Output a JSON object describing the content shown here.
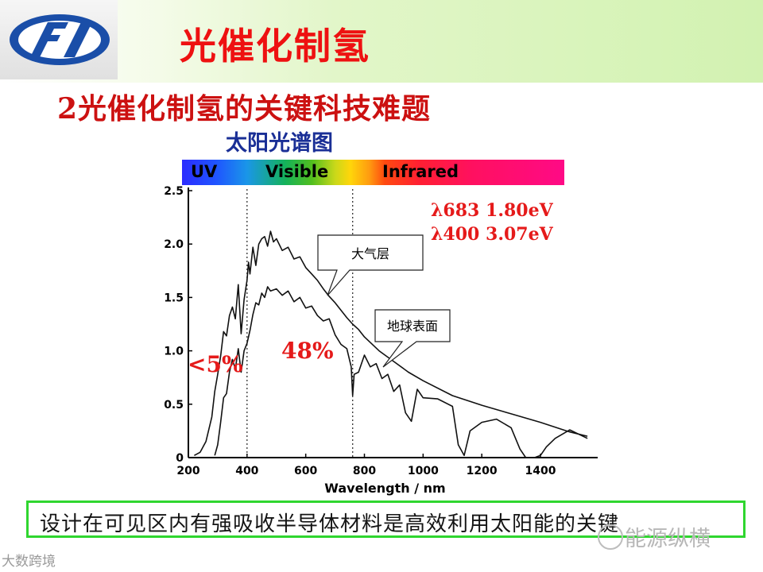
{
  "header": {
    "title": "光催化制氢",
    "logo_name": "logo"
  },
  "section": {
    "subtitle": "2光催化制氢的关键科技难题",
    "chart_heading": "太阳光谱图"
  },
  "spectrum_bar": {
    "labels": [
      "UV",
      "Visible",
      "Infrared"
    ]
  },
  "chart_data": {
    "type": "line",
    "title": "太阳光谱图",
    "xlabel": "Wavelength / nm",
    "ylabel": "",
    "xlim": [
      200,
      1600
    ],
    "ylim": [
      0,
      2.5
    ],
    "x_ticks": [
      200,
      400,
      600,
      800,
      1000,
      1200,
      1400
    ],
    "y_ticks": [
      0,
      0.5,
      1.0,
      1.5,
      2.0,
      2.5
    ],
    "vlines": [
      400,
      760
    ],
    "series": [
      {
        "name": "大气层",
        "x": [
          220,
          240,
          260,
          280,
          290,
          300,
          310,
          320,
          330,
          340,
          350,
          360,
          370,
          380,
          390,
          400,
          405,
          410,
          420,
          430,
          440,
          450,
          460,
          470,
          480,
          490,
          500,
          520,
          540,
          560,
          580,
          600,
          620,
          640,
          660,
          680,
          700,
          720,
          740,
          760,
          780,
          800,
          850,
          900,
          950,
          1000,
          1100,
          1200,
          1300,
          1400,
          1500,
          1560
        ],
        "y": [
          0.02,
          0.05,
          0.15,
          0.38,
          0.62,
          0.78,
          0.95,
          1.18,
          1.14,
          1.33,
          1.41,
          1.3,
          1.62,
          1.16,
          1.48,
          1.66,
          1.83,
          1.72,
          1.97,
          1.8,
          2.0,
          2.05,
          2.07,
          1.98,
          2.12,
          2.02,
          2.05,
          1.94,
          1.97,
          1.86,
          1.88,
          1.78,
          1.72,
          1.66,
          1.58,
          1.51,
          1.45,
          1.38,
          1.31,
          1.25,
          1.2,
          1.13,
          1.0,
          0.9,
          0.8,
          0.72,
          0.58,
          0.49,
          0.41,
          0.33,
          0.24,
          0.2
        ]
      },
      {
        "name": "地球表面",
        "x": [
          290,
          300,
          310,
          320,
          330,
          340,
          350,
          360,
          370,
          380,
          390,
          400,
          410,
          420,
          430,
          440,
          450,
          460,
          470,
          480,
          500,
          520,
          540,
          560,
          580,
          600,
          620,
          640,
          660,
          680,
          700,
          720,
          740,
          755,
          760,
          765,
          780,
          800,
          820,
          840,
          860,
          880,
          900,
          920,
          940,
          960,
          980,
          1000,
          1050,
          1100,
          1120,
          1140,
          1160,
          1200,
          1250,
          1300,
          1330,
          1350,
          1380,
          1400,
          1420,
          1450,
          1500,
          1560
        ],
        "y": [
          0.02,
          0.12,
          0.33,
          0.56,
          0.6,
          0.8,
          0.92,
          0.83,
          1.02,
          0.8,
          1.0,
          1.07,
          1.19,
          1.34,
          1.45,
          1.43,
          1.54,
          1.5,
          1.6,
          1.56,
          1.58,
          1.52,
          1.56,
          1.46,
          1.5,
          1.4,
          1.42,
          1.33,
          1.28,
          1.3,
          1.15,
          1.06,
          1.02,
          0.85,
          0.58,
          0.78,
          0.8,
          0.96,
          0.85,
          0.88,
          0.74,
          0.78,
          0.62,
          0.68,
          0.42,
          0.34,
          0.64,
          0.56,
          0.55,
          0.48,
          0.12,
          0.02,
          0.25,
          0.33,
          0.36,
          0.28,
          0.08,
          0.0,
          0.0,
          0.02,
          0.1,
          0.18,
          0.26,
          0.18
        ]
      }
    ],
    "labels": {
      "atmosphere": "大气层",
      "surface": "地球表面"
    },
    "annotations": {
      "uv_percent": "<5%",
      "visible_percent": "48%",
      "line1": "λ683 1.80eV",
      "line2": "λ400 3.07eV"
    }
  },
  "footer_note": "设计在可见区内有强吸收半导体材料是高效利用太阳能的关键",
  "watermarks": {
    "left": "大数跨境",
    "right": "能源纵横"
  },
  "colors": {
    "title_red": "#ee1111",
    "subtitle_red": "#cc1111",
    "heading_blue": "#1a2f96",
    "note_border": "#2fd62f",
    "annotation_red": "#e51a1a"
  }
}
